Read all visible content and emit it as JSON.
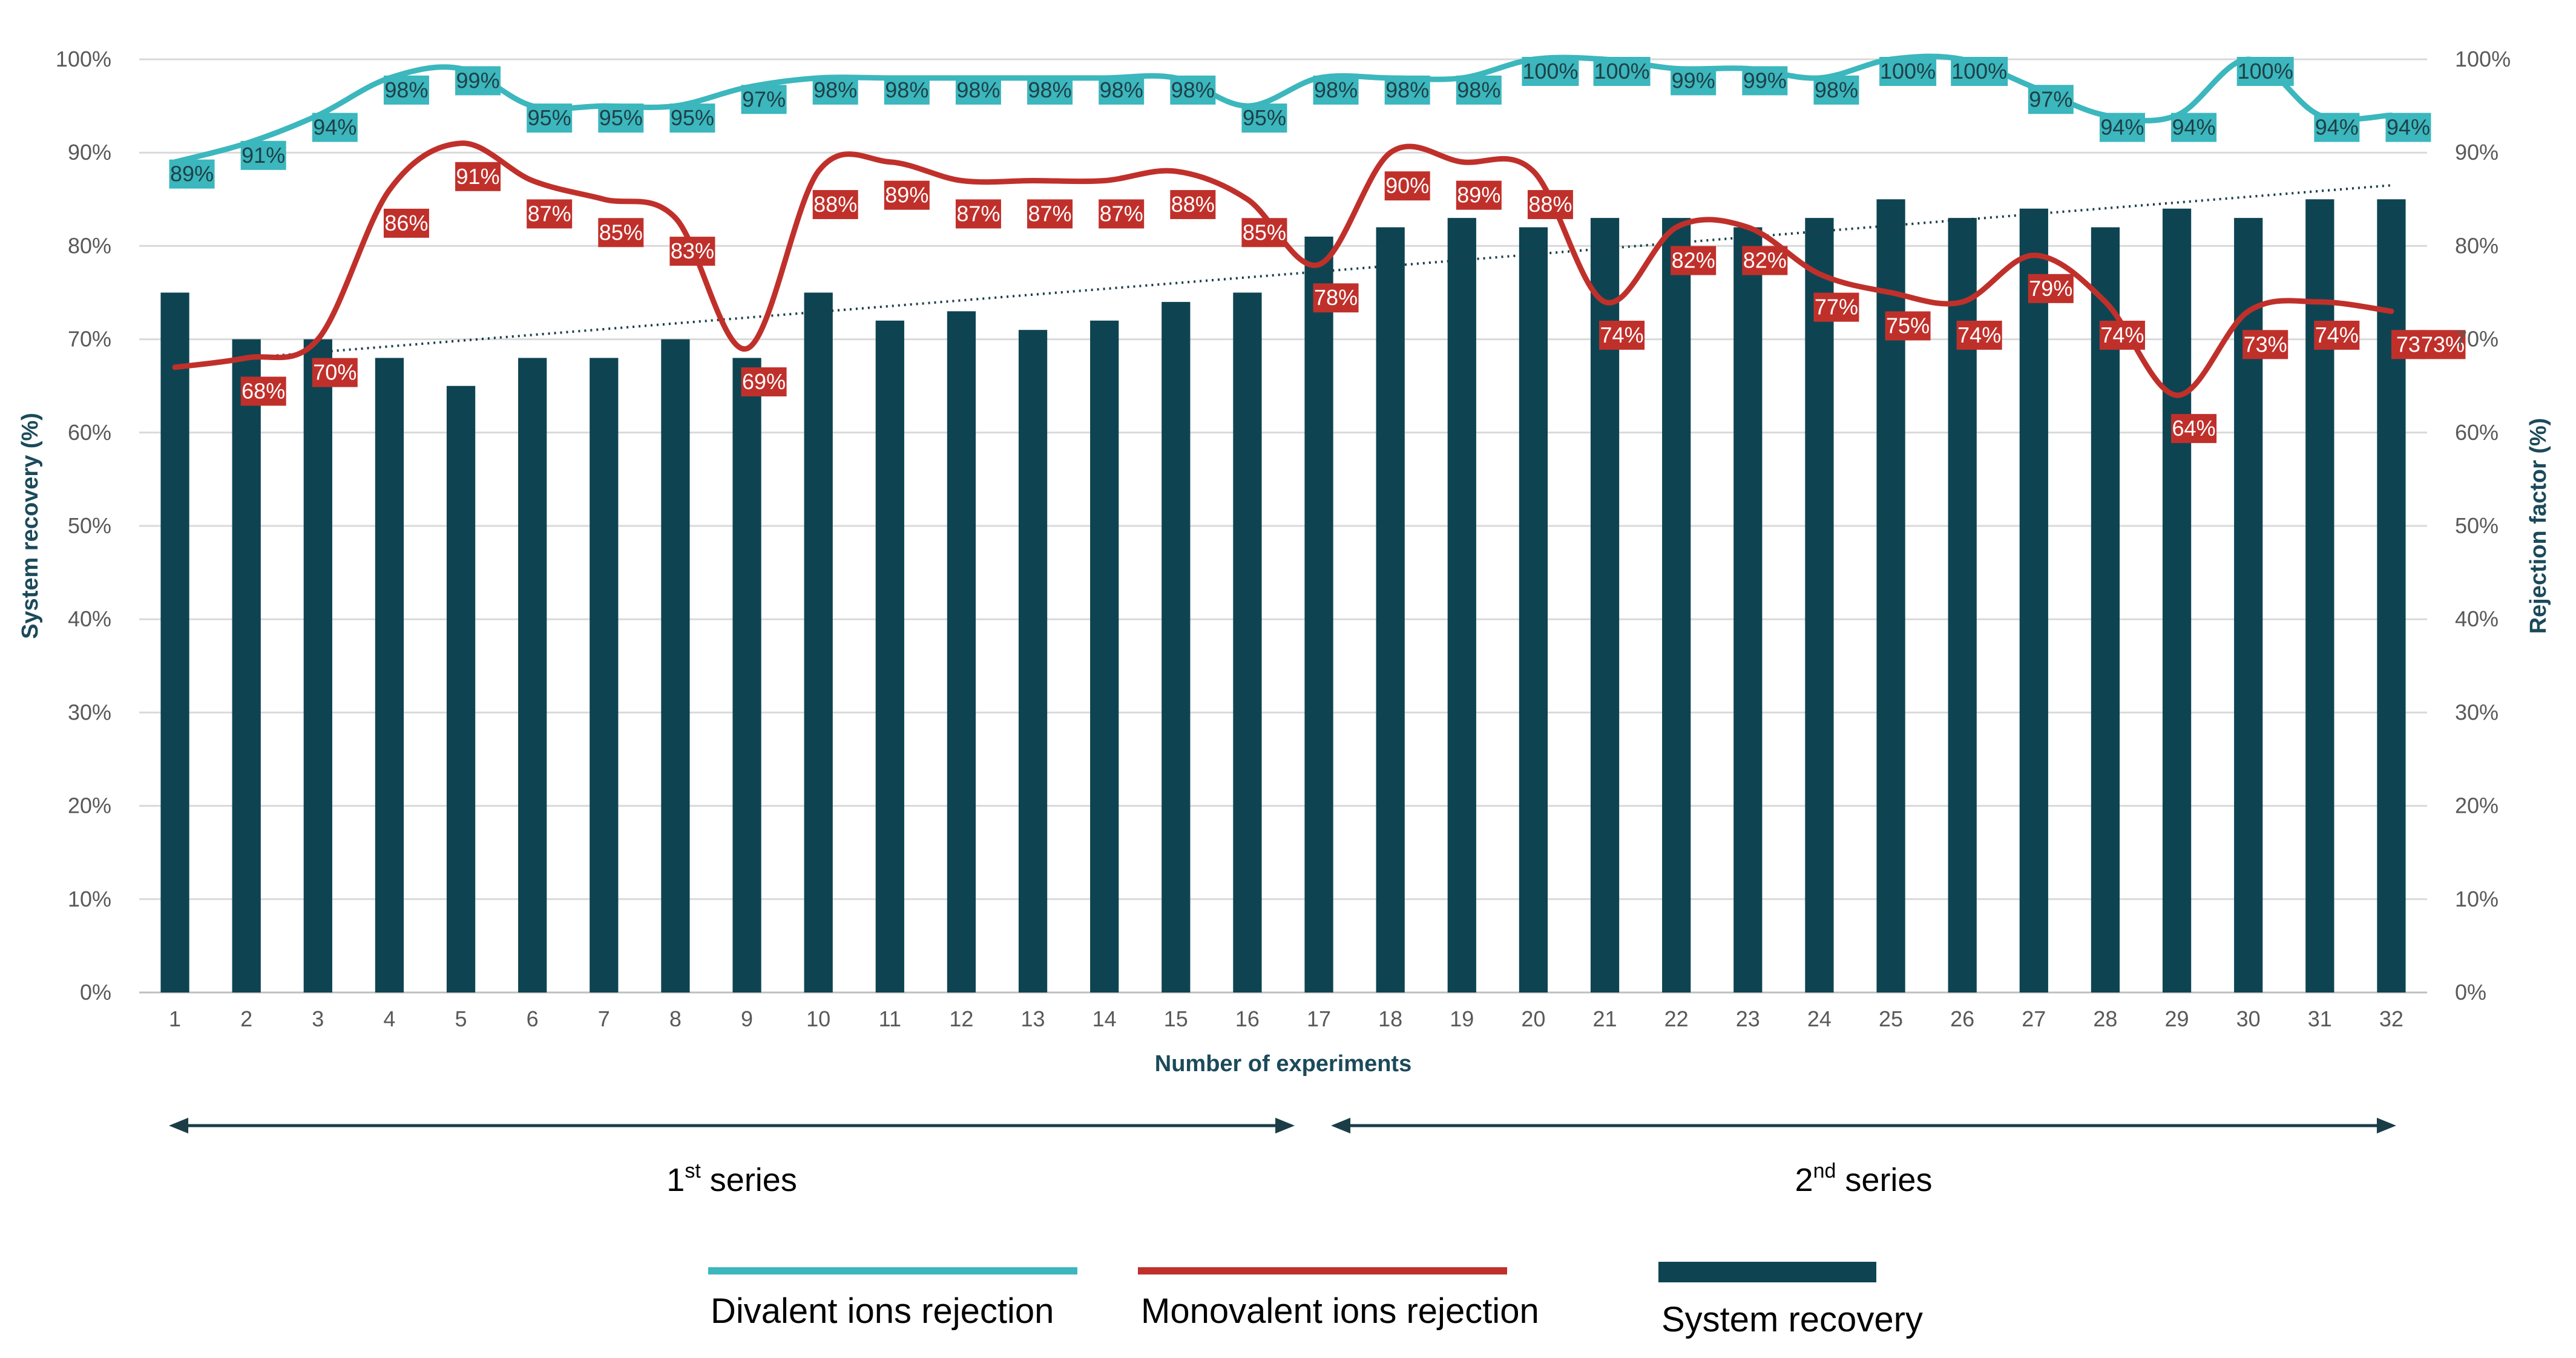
{
  "chart_data": {
    "type": "bar",
    "title": "",
    "xlabel": "Number of experiments",
    "ylabel_left": "System recovery (%)",
    "ylabel_right": "Rejection factor (%)",
    "ylim": [
      0,
      100
    ],
    "y_ticks": [
      "0%",
      "10%",
      "20%",
      "30%",
      "40%",
      "50%",
      "60%",
      "70%",
      "80%",
      "90%",
      "100%"
    ],
    "categories": [
      "1",
      "2",
      "3",
      "4",
      "5",
      "6",
      "7",
      "8",
      "9",
      "10",
      "11",
      "12",
      "13",
      "14",
      "15",
      "16",
      "17",
      "18",
      "19",
      "20",
      "21",
      "22",
      "23",
      "24",
      "25",
      "26",
      "27",
      "28",
      "29",
      "30",
      "31",
      "32"
    ],
    "series": [
      {
        "name": "System recovery",
        "kind": "bar",
        "axis": "left",
        "color": "#0e4452",
        "values": [
          75,
          70,
          70,
          68,
          65,
          68,
          68,
          70,
          68,
          75,
          72,
          73,
          71,
          72,
          74,
          75,
          81,
          82,
          83,
          82,
          83,
          83,
          82,
          83,
          85,
          83,
          84,
          82,
          84,
          83,
          85,
          85
        ]
      },
      {
        "name": "Monovalent ions rejection",
        "kind": "line",
        "axis": "right",
        "color": "#c0302b",
        "values": [
          67,
          68,
          70,
          86,
          91,
          87,
          85,
          83,
          69,
          88,
          89,
          87,
          87,
          87,
          88,
          85,
          78,
          90,
          89,
          88,
          74,
          82,
          82,
          77,
          75,
          74,
          79,
          74,
          64,
          73,
          74,
          73
        ],
        "labels": [
          "",
          "68%",
          "70%",
          "86%",
          "91%",
          "87%",
          "85%",
          "83%",
          "69%",
          "88%",
          "89%",
          "87%",
          "87%",
          "87%",
          "88%",
          "85%",
          "78%",
          "90%",
          "89%",
          "88%",
          "74%",
          "82%",
          "82%",
          "77%",
          "75%",
          "74%",
          "79%",
          "74%",
          "64%",
          "73%",
          "74%",
          "73"
        ],
        "extra_label": "73%"
      },
      {
        "name": "Divalent ions rejection",
        "kind": "line",
        "axis": "right",
        "color": "#3bb7bd",
        "values": [
          89,
          91,
          94,
          98,
          99,
          95,
          95,
          95,
          97,
          98,
          98,
          98,
          98,
          98,
          98,
          95,
          98,
          98,
          98,
          100,
          100,
          99,
          99,
          98,
          100,
          100,
          97,
          94,
          94,
          100,
          94,
          94
        ],
        "labels": [
          "89%",
          "91%",
          "94%",
          "98%",
          "99%",
          "95%",
          "95%",
          "95%",
          "97%",
          "98%",
          "98%",
          "98%",
          "98%",
          "98%",
          "98%",
          "95%",
          "98%",
          "98%",
          "98%",
          "100%",
          "100%",
          "99%",
          "99%",
          "98%",
          "100%",
          "100%",
          "97%",
          "94%",
          "94%",
          "100%",
          "94%",
          "94%"
        ]
      }
    ],
    "trendline": {
      "series": "System recovery",
      "style": "dotted",
      "start_value": 68,
      "end_value": 86.5,
      "from_category": "2",
      "to_category": "32"
    },
    "annotations": {
      "series_ranges": [
        {
          "base": "1",
          "sup": "st",
          "rest": " series",
          "from_category": "1",
          "to_category": "17"
        },
        {
          "base": "2",
          "sup": "nd",
          "rest": "  series",
          "from_category": "17",
          "to_category": "32"
        }
      ]
    },
    "legend": {
      "placement": "bottom",
      "items": [
        {
          "label": "Divalent ions rejection",
          "color": "#3bb7bd",
          "shape": "line"
        },
        {
          "label": "Monovalent ions rejection",
          "color": "#c0302b",
          "shape": "line"
        },
        {
          "label": "System recovery",
          "color": "#0e4452",
          "shape": "bar"
        }
      ]
    },
    "grid": true
  }
}
